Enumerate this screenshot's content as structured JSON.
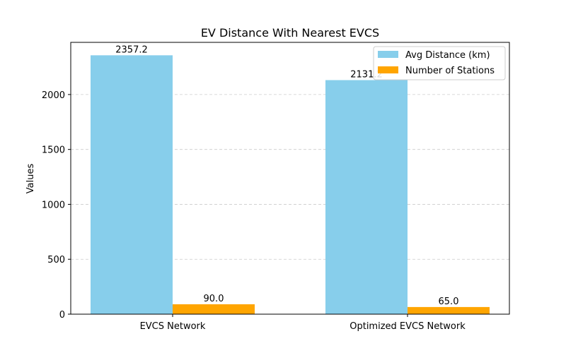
{
  "chart_data": {
    "type": "bar",
    "title": "EV Distance With Nearest EVCS",
    "xlabel": "",
    "ylabel": "Values",
    "categories": [
      "EVCS Network",
      "Optimized EVCS Network"
    ],
    "series": [
      {
        "name": "Avg Distance (km)",
        "values": [
          2357.2,
          2131.2
        ],
        "labels": [
          "2357.2",
          "2131.2"
        ],
        "color": "#87CEEB"
      },
      {
        "name": "Number of Stations",
        "values": [
          90.0,
          65.0
        ],
        "labels": [
          "90.0",
          "65.0"
        ],
        "color": "#FFA500"
      }
    ],
    "ylim": [
      0,
      2475
    ],
    "yticks": [
      0,
      500,
      1000,
      1500,
      2000
    ],
    "grid": {
      "y": true,
      "style": "dashed"
    },
    "legend": {
      "position": "top-right"
    }
  }
}
